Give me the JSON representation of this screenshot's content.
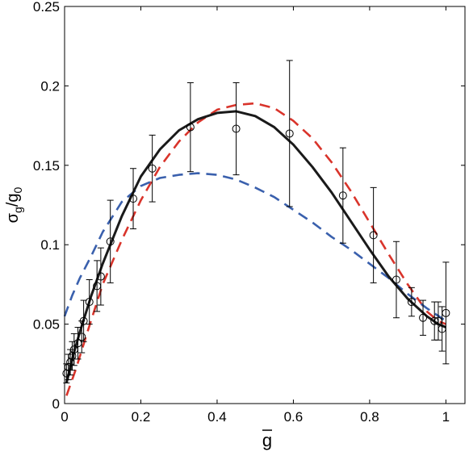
{
  "chart_data": {
    "type": "scatter",
    "title": "",
    "xlim": [
      0,
      1.05
    ],
    "ylim": [
      0,
      0.25
    ],
    "grid": false,
    "xticks": [
      0,
      0.2,
      0.4,
      0.6,
      0.8,
      1
    ],
    "yticks": [
      0,
      0.05,
      0.1,
      0.15,
      0.2,
      0.25
    ],
    "xtick_labels": [
      "0",
      "0.2",
      "0.4",
      "0.6",
      "0.8",
      "1"
    ],
    "ytick_labels": [
      "0",
      "0.05",
      "0.1",
      "0.15",
      "0.2",
      "0.25"
    ],
    "xlabel": {
      "base": "g",
      "overbar": true
    },
    "ylabel": {
      "main": "σ",
      "sub1": "g",
      "mid": "/g",
      "sub2": "0"
    },
    "points": {
      "marker": "circle",
      "color": "#000000",
      "x": [
        0.005,
        0.01,
        0.015,
        0.02,
        0.025,
        0.035,
        0.045,
        0.05,
        0.065,
        0.085,
        0.095,
        0.12,
        0.18,
        0.23,
        0.33,
        0.45,
        0.59,
        0.73,
        0.81,
        0.87,
        0.91,
        0.94,
        0.97,
        0.98,
        0.99,
        1.0
      ],
      "y": [
        0.019,
        0.023,
        0.026,
        0.03,
        0.034,
        0.038,
        0.042,
        0.052,
        0.064,
        0.074,
        0.08,
        0.102,
        0.129,
        0.148,
        0.174,
        0.173,
        0.17,
        0.131,
        0.106,
        0.078,
        0.064,
        0.054,
        0.052,
        0.052,
        0.047,
        0.057
      ],
      "err": [
        0.006,
        0.008,
        0.008,
        0.009,
        0.01,
        0.01,
        0.01,
        0.013,
        0.014,
        0.016,
        0.018,
        0.026,
        0.019,
        0.021,
        0.028,
        0.029,
        0.046,
        0.03,
        0.03,
        0.024,
        0.009,
        0.011,
        0.012,
        0.012,
        0.014,
        0.032
      ]
    },
    "series": [
      {
        "style": "solid",
        "color": "#1a1a1a",
        "x": [
          0.005,
          0.02,
          0.04,
          0.07,
          0.1,
          0.15,
          0.2,
          0.25,
          0.3,
          0.35,
          0.4,
          0.45,
          0.5,
          0.55,
          0.6,
          0.65,
          0.7,
          0.75,
          0.8,
          0.85,
          0.9,
          0.95,
          0.98,
          1.0
        ],
        "y": [
          0.013,
          0.028,
          0.045,
          0.068,
          0.088,
          0.118,
          0.143,
          0.16,
          0.172,
          0.179,
          0.183,
          0.184,
          0.181,
          0.174,
          0.163,
          0.149,
          0.133,
          0.115,
          0.097,
          0.08,
          0.066,
          0.055,
          0.05,
          0.048
        ]
      },
      {
        "style": "dashed",
        "color": "#d9342b",
        "x": [
          0.005,
          0.03,
          0.06,
          0.1,
          0.15,
          0.2,
          0.25,
          0.3,
          0.35,
          0.4,
          0.45,
          0.5,
          0.55,
          0.6,
          0.65,
          0.7,
          0.75,
          0.8,
          0.85,
          0.9,
          0.95,
          0.98,
          1.0
        ],
        "y": [
          0.005,
          0.022,
          0.045,
          0.075,
          0.103,
          0.128,
          0.149,
          0.165,
          0.177,
          0.185,
          0.188,
          0.189,
          0.186,
          0.178,
          0.167,
          0.152,
          0.134,
          0.114,
          0.094,
          0.075,
          0.058,
          0.052,
          0.05
        ]
      },
      {
        "style": "dashed",
        "color": "#3a60ad",
        "x": [
          0.0,
          0.02,
          0.04,
          0.07,
          0.1,
          0.15,
          0.2,
          0.25,
          0.3,
          0.35,
          0.4,
          0.45,
          0.5,
          0.55,
          0.6,
          0.65,
          0.7,
          0.75,
          0.8,
          0.85,
          0.9,
          0.95,
          1.0
        ],
        "y": [
          0.055,
          0.068,
          0.079,
          0.093,
          0.108,
          0.127,
          0.137,
          0.142,
          0.144,
          0.145,
          0.144,
          0.141,
          0.136,
          0.13,
          0.122,
          0.114,
          0.105,
          0.097,
          0.088,
          0.079,
          0.069,
          0.06,
          0.052
        ]
      }
    ]
  }
}
